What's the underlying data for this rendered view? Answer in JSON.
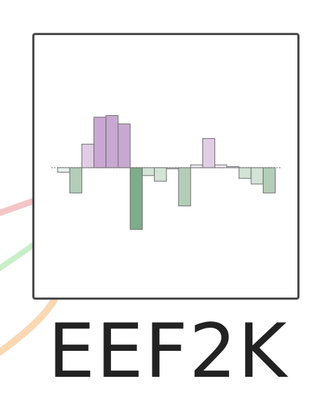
{
  "node": {
    "label": "EEF2K"
  },
  "colors": {
    "positive_strong": "#c8a8d2",
    "positive_light": "#e0cde4",
    "positive_faint": "#f1e9f3",
    "negative_strong": "#7fac8a",
    "negative_mid": "#b3cdb8",
    "negative_light": "#d3e3d6",
    "negative_faint": "#ebf2ec",
    "bar_stroke": "#6e6e6e",
    "baseline": "#9a9a9a",
    "edge_red": "#f4c5c5",
    "edge_green": "#c9efc9",
    "edge_orange": "#fbd8b4"
  },
  "chart_data": {
    "type": "bar",
    "values": [
      -0.08,
      -0.45,
      0.42,
      0.9,
      0.93,
      0.78,
      -1.1,
      -0.14,
      -0.24,
      -0.02,
      -0.68,
      0.05,
      0.52,
      0.05,
      0.01,
      -0.19,
      -0.29,
      -0.45
    ],
    "ylim": [
      -1.2,
      1.2
    ],
    "grid": false,
    "legend": "none"
  }
}
